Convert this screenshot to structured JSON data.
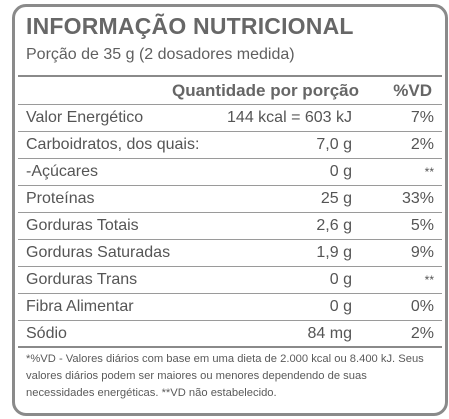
{
  "label": {
    "title": "INFORMAÇÃO NUTRICIONAL",
    "portion": "Porção de 35 g (2 dosadores medida)",
    "header_quantity": "Quantidade por porção",
    "header_vd": "%VD",
    "rows": [
      {
        "name": "Valor Energético",
        "amount": "144 kcal = 603 kJ",
        "vd": "7%"
      },
      {
        "name": "Carboidratos, dos quais:",
        "amount": "7,0 g",
        "vd": "2%"
      },
      {
        "name": "-Açúcares",
        "amount": "0 g",
        "vd": "**"
      },
      {
        "name": "Proteínas",
        "amount": "25 g",
        "vd": "33%"
      },
      {
        "name": "Gorduras Totais",
        "amount": "2,6 g",
        "vd": "5%"
      },
      {
        "name": "Gorduras Saturadas",
        "amount": "1,9 g",
        "vd": "9%"
      },
      {
        "name": "Gorduras Trans",
        "amount": "0 g",
        "vd": "**"
      },
      {
        "name": "Fibra Alimentar",
        "amount": "0 g",
        "vd": "0%"
      },
      {
        "name": "Sódio",
        "amount": "84 mg",
        "vd": "2%"
      }
    ],
    "footnote": "*%VD - Valores diários com base em uma dieta de 2.000 kcal ou 8.400 kJ. Seus valores diários podem ser maiores ou menores dependendo de suas necessidades energéticas. **VD não estabelecido."
  }
}
